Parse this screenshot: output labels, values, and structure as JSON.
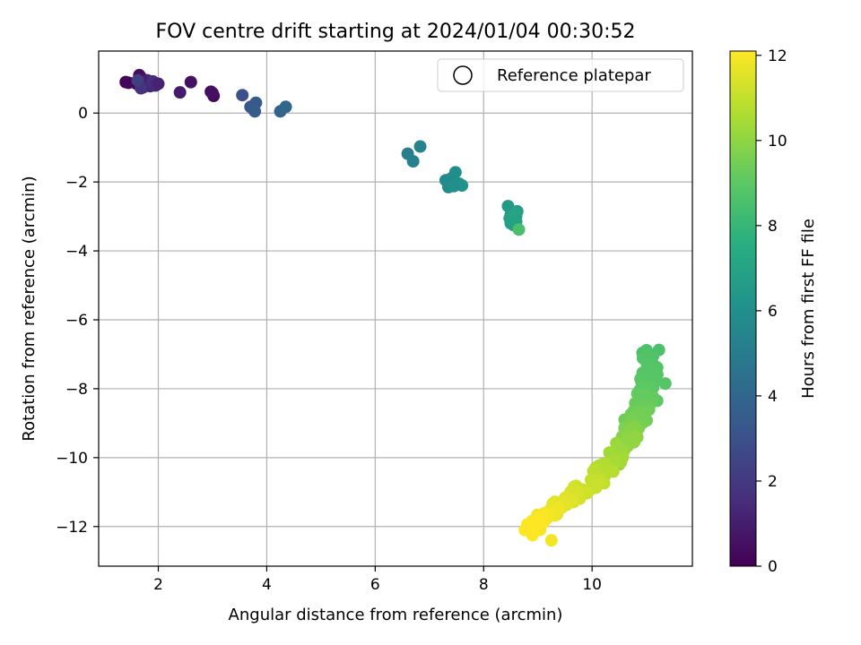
{
  "chart_data": {
    "type": "scatter",
    "title": "FOV centre drift starting at 2024/01/04 00:30:52",
    "xlabel": "Angular distance from reference (arcmin)",
    "ylabel": "Rotation from reference (arcmin)",
    "xlim": [
      0.9,
      11.85
    ],
    "ylim": [
      -13.15,
      1.8
    ],
    "xticks": [
      2,
      4,
      6,
      8,
      10
    ],
    "yticks": [
      0,
      -2,
      -4,
      -6,
      -8,
      -10,
      -12
    ],
    "grid": true,
    "colormap": "viridis",
    "colorbar": {
      "label": "Hours from first FF file",
      "range": [
        0,
        12.1
      ],
      "ticks": [
        0,
        2,
        4,
        6,
        8,
        10,
        12
      ]
    },
    "legend": {
      "position": "top-right",
      "entries": [
        {
          "label": "Reference platepar",
          "marker": "open-circle"
        }
      ]
    },
    "series": [
      {
        "x": [
          1.4,
          1.45,
          1.6,
          1.65,
          1.7,
          1.72,
          1.75,
          1.8,
          1.85,
          1.9,
          1.95,
          2.0,
          1.68,
          1.62,
          2.4,
          2.6,
          2.97,
          3.02,
          3.0
        ],
        "y": [
          0.9,
          0.88,
          0.85,
          1.1,
          1.0,
          0.75,
          0.8,
          0.95,
          0.78,
          0.92,
          0.8,
          0.85,
          0.72,
          0.95,
          0.6,
          0.9,
          0.62,
          0.5,
          0.58
        ],
        "t": [
          0.15,
          0.2,
          0.3,
          0.4,
          0.5,
          0.8,
          1.0,
          1.1,
          1.3,
          1.6,
          1.4,
          1.2,
          1.8,
          2.2,
          0.9,
          0.6,
          0.4,
          0.3,
          0.5
        ]
      },
      {
        "x": [
          3.55,
          3.7,
          3.75,
          3.8,
          3.78,
          4.25,
          4.35
        ],
        "y": [
          0.52,
          0.18,
          0.12,
          0.3,
          0.05,
          0.05,
          0.18
        ],
        "t": [
          3.0,
          3.2,
          3.3,
          3.4,
          3.5,
          3.8,
          4.0
        ]
      },
      {
        "x": [
          6.6,
          6.7,
          6.83,
          7.3,
          7.35,
          7.4,
          7.48,
          7.55,
          7.6,
          7.38,
          7.45
        ],
        "y": [
          -1.18,
          -1.4,
          -0.97,
          -1.95,
          -2.15,
          -1.9,
          -1.72,
          -2.05,
          -2.1,
          -2.02,
          -2.12
        ],
        "t": [
          5.1,
          5.2,
          5.3,
          5.6,
          5.7,
          5.8,
          5.9,
          6.0,
          6.1,
          5.75,
          5.95
        ]
      },
      {
        "x": [
          8.45,
          8.5,
          8.55,
          8.6,
          8.62,
          8.5,
          8.55,
          8.6,
          8.48,
          8.58,
          8.65
        ],
        "y": [
          -2.7,
          -2.95,
          -3.1,
          -3.0,
          -2.85,
          -3.2,
          -3.25,
          -3.15,
          -3.05,
          -2.9,
          -3.38
        ],
        "t": [
          6.5,
          6.6,
          6.65,
          6.7,
          6.75,
          6.8,
          6.85,
          6.9,
          6.95,
          7.0,
          8.5
        ]
      }
    ]
  }
}
